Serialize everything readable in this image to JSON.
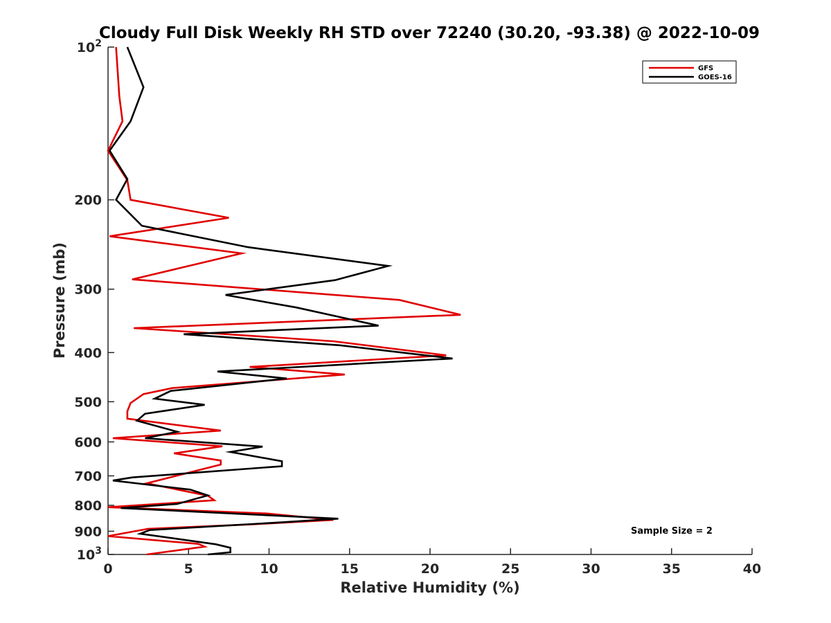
{
  "chart_data": {
    "type": "line",
    "title": "Cloudy Full Disk Weekly RH STD over 72240 (30.20, -93.38) @ 2022-10-09",
    "xlabel": "Relative Humidity (%)",
    "ylabel": "Pressure (mb)",
    "xlim": [
      0,
      40
    ],
    "ylim": [
      100,
      1000
    ],
    "y_scale": "log",
    "y_reversed": true,
    "x_ticks": [
      "0",
      "5",
      "10",
      "15",
      "20",
      "25",
      "30",
      "35",
      "40"
    ],
    "y_ticks": [
      {
        "value": 100,
        "label": "10",
        "exp": "2"
      },
      {
        "value": 200,
        "label": "200"
      },
      {
        "value": 300,
        "label": "300"
      },
      {
        "value": 400,
        "label": "400"
      },
      {
        "value": 500,
        "label": "500"
      },
      {
        "value": 600,
        "label": "600"
      },
      {
        "value": 700,
        "label": "700"
      },
      {
        "value": 800,
        "label": "800"
      },
      {
        "value": 900,
        "label": "900"
      },
      {
        "value": 1000,
        "label": "10",
        "exp": "3"
      }
    ],
    "legend_position": "top-right",
    "annotation": "Sample Size = 2",
    "series": [
      {
        "name": "GFS",
        "color": "#e00000",
        "points": [
          [
            0.5,
            100
          ],
          [
            0.7,
            125
          ],
          [
            0.9,
            140
          ],
          [
            0.0,
            160
          ],
          [
            1.2,
            183
          ],
          [
            1.4,
            200
          ],
          [
            7.5,
            217
          ],
          [
            0.1,
            236
          ],
          [
            8.3,
            255
          ],
          [
            1.5,
            287
          ],
          [
            18.1,
            315
          ],
          [
            21.9,
            337
          ],
          [
            1.6,
            358
          ],
          [
            14.0,
            380
          ],
          [
            21.0,
            405
          ],
          [
            8.8,
            427
          ],
          [
            14.7,
            442
          ],
          [
            4.0,
            470
          ],
          [
            2.2,
            483
          ],
          [
            1.4,
            503
          ],
          [
            1.2,
            522
          ],
          [
            1.2,
            540
          ],
          [
            7.0,
            570
          ],
          [
            0.3,
            590
          ],
          [
            7.1,
            612
          ],
          [
            4.1,
            632
          ],
          [
            7.0,
            653
          ],
          [
            7.0,
            665
          ],
          [
            2.4,
            724
          ],
          [
            6.2,
            766
          ],
          [
            6.6,
            782
          ],
          [
            0.0,
            807
          ],
          [
            9.8,
            830
          ],
          [
            14.0,
            855
          ],
          [
            9.0,
            872
          ],
          [
            2.5,
            890
          ],
          [
            0.0,
            920
          ],
          [
            5.6,
            953
          ],
          [
            6.0,
            965
          ],
          [
            2.4,
            1000
          ]
        ]
      },
      {
        "name": "GOES-16",
        "color": "#000000",
        "points": [
          [
            1.2,
            100
          ],
          [
            2.2,
            120
          ],
          [
            1.4,
            140
          ],
          [
            0.1,
            160
          ],
          [
            1.2,
            182
          ],
          [
            0.5,
            200
          ],
          [
            2.1,
            225
          ],
          [
            8.7,
            248
          ],
          [
            17.4,
            270
          ],
          [
            14.1,
            288
          ],
          [
            7.3,
            308
          ],
          [
            11.7,
            326
          ],
          [
            16.8,
            354
          ],
          [
            4.7,
            368
          ],
          [
            14.4,
            387
          ],
          [
            21.4,
            411
          ],
          [
            6.8,
            436
          ],
          [
            11.1,
            450
          ],
          [
            3.9,
            476
          ],
          [
            2.9,
            493
          ],
          [
            6.0,
            507
          ],
          [
            2.3,
            528
          ],
          [
            1.8,
            545
          ],
          [
            4.3,
            573
          ],
          [
            2.3,
            590
          ],
          [
            9.6,
            613
          ],
          [
            7.6,
            628
          ],
          [
            10.8,
            655
          ],
          [
            10.8,
            670
          ],
          [
            1.5,
            705
          ],
          [
            0.3,
            715
          ],
          [
            5.1,
            745
          ],
          [
            6.2,
            765
          ],
          [
            4.3,
            795
          ],
          [
            0.8,
            810
          ],
          [
            14.3,
            850
          ],
          [
            10.6,
            865
          ],
          [
            2.6,
            895
          ],
          [
            2.0,
            910
          ],
          [
            6.7,
            955
          ],
          [
            7.6,
            970
          ],
          [
            7.6,
            990
          ],
          [
            6.2,
            1000
          ]
        ]
      }
    ]
  }
}
